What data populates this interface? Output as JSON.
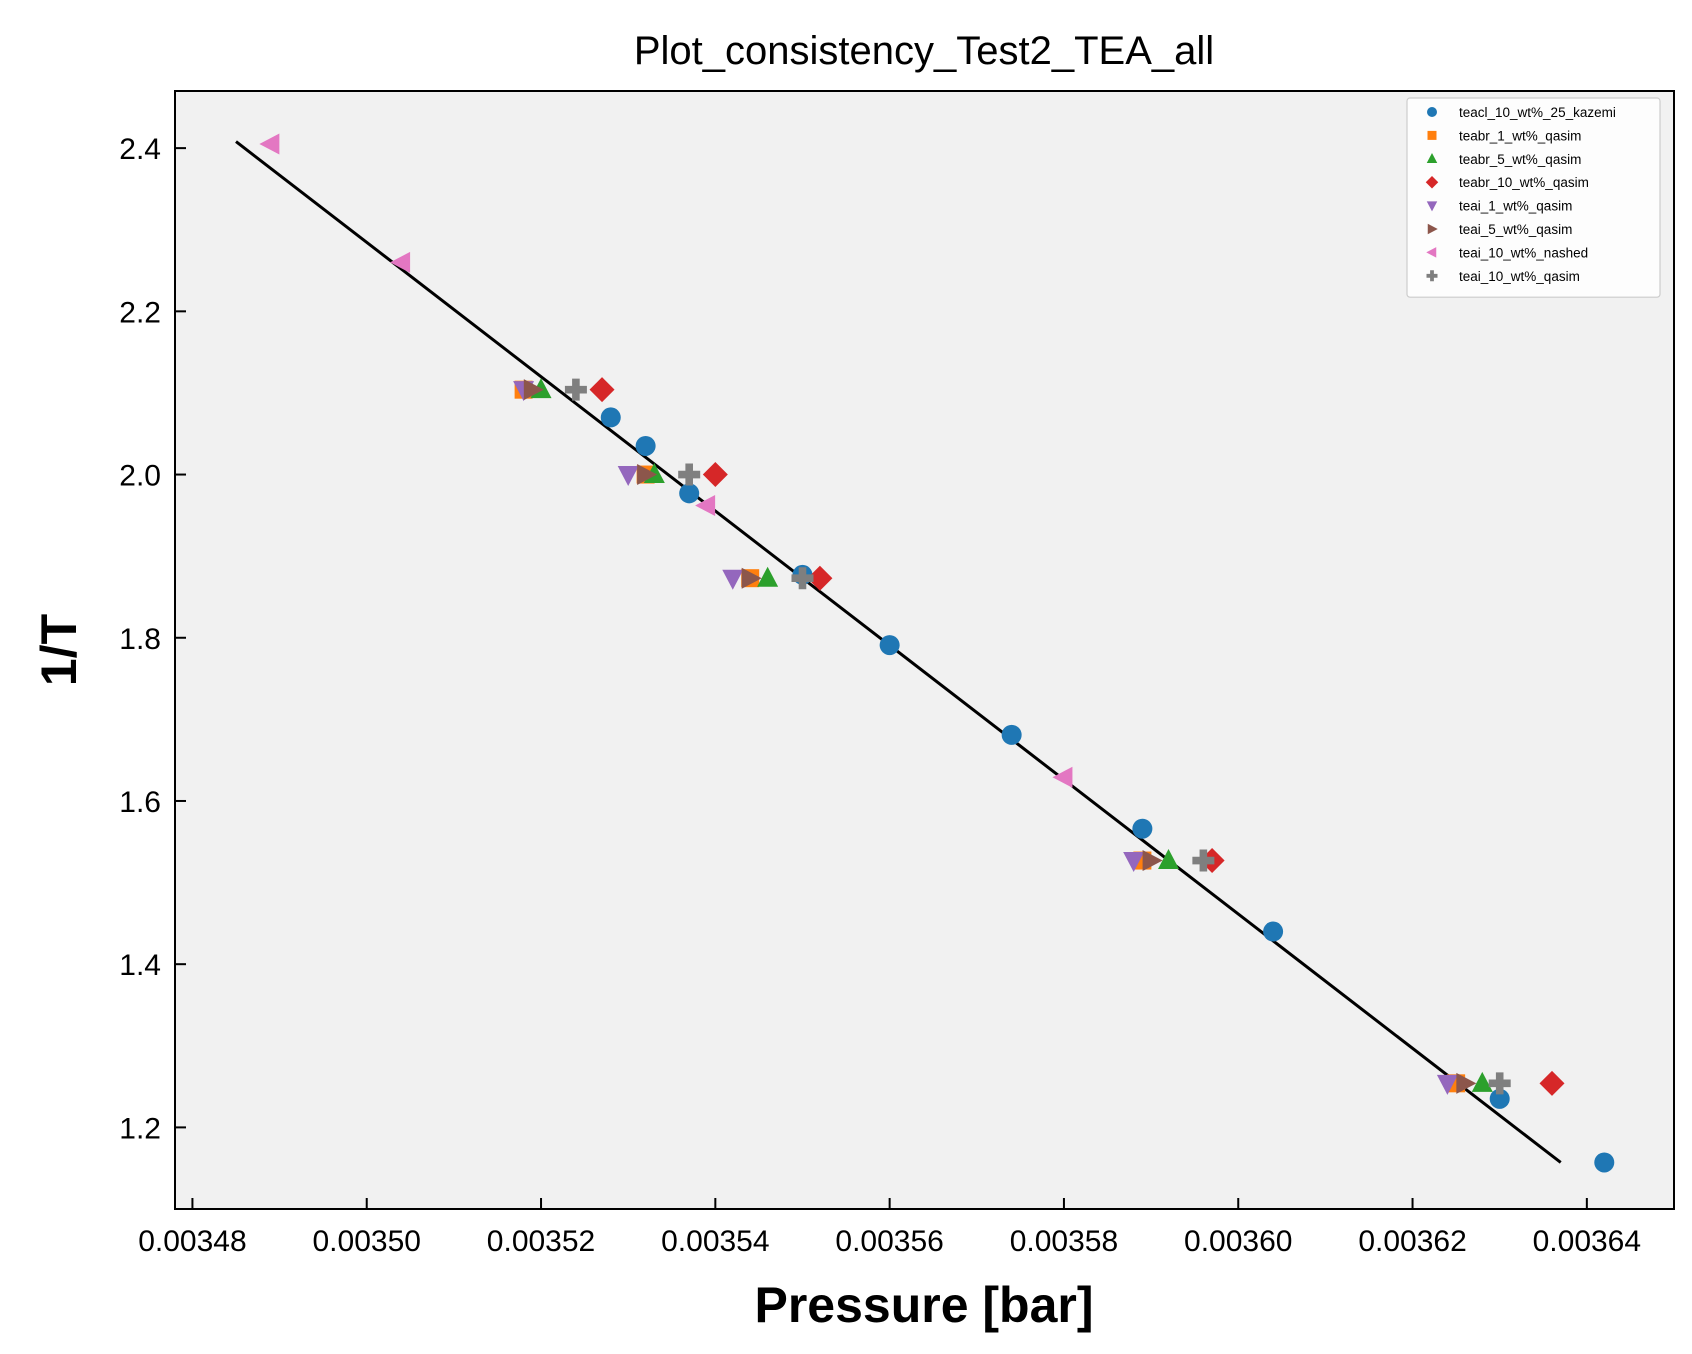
{
  "chart_data": {
    "type": "scatter",
    "title": "Plot_consistency_Test2_TEA_all",
    "xlabel": "Pressure [bar]",
    "ylabel": "1/T",
    "xlim": [
      0.003478,
      0.00365
    ],
    "ylim": [
      1.1,
      2.47
    ],
    "x_ticks": [
      "0.00348",
      "0.00350",
      "0.00352",
      "0.00354",
      "0.00356",
      "0.00358",
      "0.00360",
      "0.00362",
      "0.00364"
    ],
    "x_tick_values": [
      0.00348,
      0.0035,
      0.00352,
      0.00354,
      0.00356,
      0.00358,
      0.0036,
      0.00362,
      0.00364
    ],
    "y_ticks": [
      "1.2",
      "1.4",
      "1.6",
      "1.8",
      "2.0",
      "2.2",
      "2.4"
    ],
    "y_tick_values": [
      1.2,
      1.4,
      1.6,
      1.8,
      2.0,
      2.2,
      2.4
    ],
    "grid": false,
    "legend_position": "top-right",
    "plot_background": "#f1f1f1",
    "series": [
      {
        "name": "teacl_10_wt%_25_kazemi",
        "marker": "circle",
        "color": "#1f77b4",
        "x": [
          0.003528,
          0.003532,
          0.003537,
          0.00355,
          0.00356,
          0.003574,
          0.003589,
          0.003604,
          0.00363,
          0.003642
        ],
        "y": [
          2.07,
          2.035,
          1.977,
          1.877,
          1.791,
          1.681,
          1.566,
          1.44,
          1.235,
          1.157
        ]
      },
      {
        "name": "teabr_1_wt%_qasim",
        "marker": "square",
        "color": "#ff7f0e",
        "x": [
          0.003518,
          0.003532,
          0.003544,
          0.003589,
          0.003625
        ],
        "y": [
          2.104,
          2.0,
          1.873,
          1.527,
          1.254
        ]
      },
      {
        "name": "teabr_5_wt%_qasim",
        "marker": "triangle-up",
        "color": "#2ca02c",
        "x": [
          0.00352,
          0.003533,
          0.003546,
          0.003592,
          0.003628
        ],
        "y": [
          2.104,
          2.0,
          1.873,
          1.527,
          1.254
        ]
      },
      {
        "name": "teabr_10_wt%_qasim",
        "marker": "diamond",
        "color": "#d62728",
        "x": [
          0.003527,
          0.00354,
          0.003552,
          0.003597,
          0.003636
        ],
        "y": [
          2.104,
          2.0,
          1.873,
          1.527,
          1.254
        ]
      },
      {
        "name": "teai_1_wt%_qasim",
        "marker": "triangle-down",
        "color": "#9467bd",
        "x": [
          0.003518,
          0.00353,
          0.003542,
          0.003588,
          0.003624
        ],
        "y": [
          2.104,
          2.0,
          1.873,
          1.527,
          1.254
        ]
      },
      {
        "name": "teai_5_wt%_qasim",
        "marker": "triangle-right",
        "color": "#8c564b",
        "x": [
          0.003519,
          0.003532,
          0.003544,
          0.00359,
          0.003626
        ],
        "y": [
          2.104,
          2.0,
          1.873,
          1.527,
          1.254
        ]
      },
      {
        "name": "teai_10_wt%_nashed",
        "marker": "triangle-left",
        "color": "#e377c2",
        "x": [
          0.003489,
          0.003504,
          0.003539,
          0.00358
        ],
        "y": [
          2.405,
          2.26,
          1.962,
          1.629
        ]
      },
      {
        "name": "teai_10_wt%_qasim",
        "marker": "plus",
        "color": "#7f7f7f",
        "x": [
          0.003524,
          0.003537,
          0.00355,
          0.003596,
          0.00363
        ],
        "y": [
          2.104,
          2.0,
          1.873,
          1.527,
          1.254
        ]
      }
    ],
    "fit_line": {
      "color": "#000000",
      "x": [
        0.003485,
        0.003637
      ],
      "y": [
        2.408,
        1.157
      ]
    }
  }
}
